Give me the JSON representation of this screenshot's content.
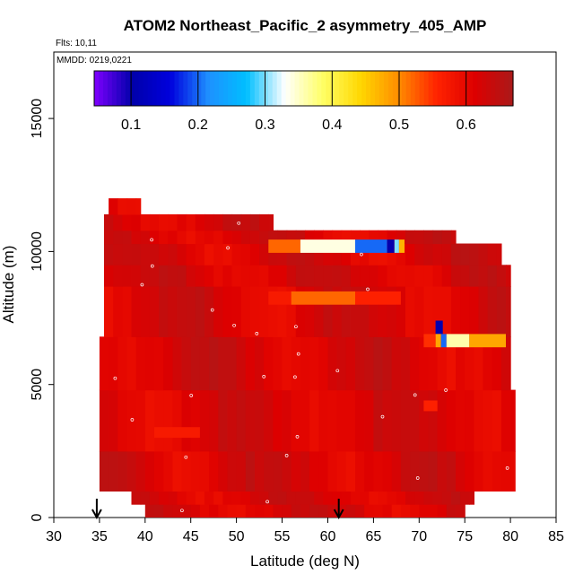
{
  "chart_data": {
    "type": "heatmap",
    "title": "ATOM2 Northeast_Pacific_2 asymmetry_405_AMP",
    "flights_label": "Flts: 10,11",
    "date_label": "MMDD: 0219,0221",
    "xlabel": "Latitude (deg N)",
    "ylabel": "Altitude (m)",
    "xlim": [
      30,
      85
    ],
    "ylim": [
      0,
      17500
    ],
    "x_ticks": [
      30,
      35,
      40,
      45,
      50,
      55,
      60,
      65,
      70,
      75,
      80,
      85
    ],
    "y_ticks": [
      0,
      5000,
      10000,
      15000
    ],
    "colorbar": {
      "range": [
        0.045,
        0.67
      ],
      "ticks": [
        0.1,
        0.2,
        0.3,
        0.4,
        0.5,
        0.6
      ],
      "tick_labels": [
        "0.1",
        "0.2",
        "0.3",
        "0.4",
        "0.5",
        "0.6"
      ],
      "colors": [
        "#7f00ff",
        "#0000aa",
        "#0000dd",
        "#1e90ff",
        "#00bfff",
        "#ffffff",
        "#ffff66",
        "#ffd700",
        "#ff8c00",
        "#ff2200",
        "#dd0000",
        "#aa1a1a"
      ]
    },
    "background_value": 0.62,
    "altitude_bands": [
      {
        "alt": [
          0,
          500
        ],
        "lat": [
          40,
          75
        ]
      },
      {
        "alt": [
          500,
          1000
        ],
        "lat": [
          38.5,
          76
        ]
      },
      {
        "alt": [
          1000,
          2500
        ],
        "lat": [
          35,
          80.5
        ]
      },
      {
        "alt": [
          2500,
          4800
        ],
        "lat": [
          35,
          80.5
        ]
      },
      {
        "alt": [
          4800,
          6800
        ],
        "lat": [
          35,
          80
        ]
      },
      {
        "alt": [
          6800,
          8700
        ],
        "lat": [
          35.5,
          80
        ]
      },
      {
        "alt": [
          8700,
          9500
        ],
        "lat": [
          35.5,
          80
        ]
      },
      {
        "alt": [
          9500,
          10300
        ],
        "lat": [
          35.5,
          79
        ]
      },
      {
        "alt": [
          10300,
          10800
        ],
        "lat": [
          35.5,
          74
        ]
      },
      {
        "alt": [
          10800,
          11400
        ],
        "lat": [
          35.5,
          54
        ]
      },
      {
        "alt": [
          11400,
          12000
        ],
        "lat": [
          36,
          39.5
        ]
      }
    ],
    "anomalies": [
      {
        "lat": [
          53.5,
          57
        ],
        "alt": [
          9950,
          10450
        ],
        "value": 0.52
      },
      {
        "lat": [
          57,
          63
        ],
        "alt": [
          9950,
          10450
        ],
        "value": 0.34
      },
      {
        "lat": [
          63,
          66.5
        ],
        "alt": [
          9950,
          10450
        ],
        "value": 0.2
      },
      {
        "lat": [
          66.5,
          67.3
        ],
        "alt": [
          9950,
          10450
        ],
        "value": 0.1
      },
      {
        "lat": [
          67.3,
          67.8
        ],
        "alt": [
          9950,
          10450
        ],
        "value": 0.3
      },
      {
        "lat": [
          67.8,
          68.4
        ],
        "alt": [
          9950,
          10450
        ],
        "value": 0.47
      },
      {
        "lat": [
          53.5,
          56
        ],
        "alt": [
          8000,
          8500
        ],
        "value": 0.57
      },
      {
        "lat": [
          56,
          63
        ],
        "alt": [
          8000,
          8500
        ],
        "value": 0.52
      },
      {
        "lat": [
          63,
          68
        ],
        "alt": [
          8000,
          8500
        ],
        "value": 0.56
      },
      {
        "lat": [
          71.8,
          72.6
        ],
        "alt": [
          6900,
          7400
        ],
        "value": 0.1
      },
      {
        "lat": [
          71.8,
          72.4
        ],
        "alt": [
          6400,
          6900
        ],
        "value": 0.48
      },
      {
        "lat": [
          72.4,
          73.0
        ],
        "alt": [
          6400,
          6900
        ],
        "value": 0.2
      },
      {
        "lat": [
          73.0,
          75.5
        ],
        "alt": [
          6400,
          6900
        ],
        "value": 0.36
      },
      {
        "lat": [
          75.5,
          79.5
        ],
        "alt": [
          6400,
          6900
        ],
        "value": 0.48
      },
      {
        "lat": [
          70.5,
          71.8
        ],
        "alt": [
          6400,
          6900
        ],
        "value": 0.55
      },
      {
        "lat": [
          41,
          46
        ],
        "alt": [
          3000,
          3400
        ],
        "value": 0.57
      },
      {
        "lat": [
          70.5,
          72
        ],
        "alt": [
          4000,
          4400
        ],
        "value": 0.56
      }
    ],
    "arrows_lat": [
      34.7,
      61.2
    ]
  }
}
